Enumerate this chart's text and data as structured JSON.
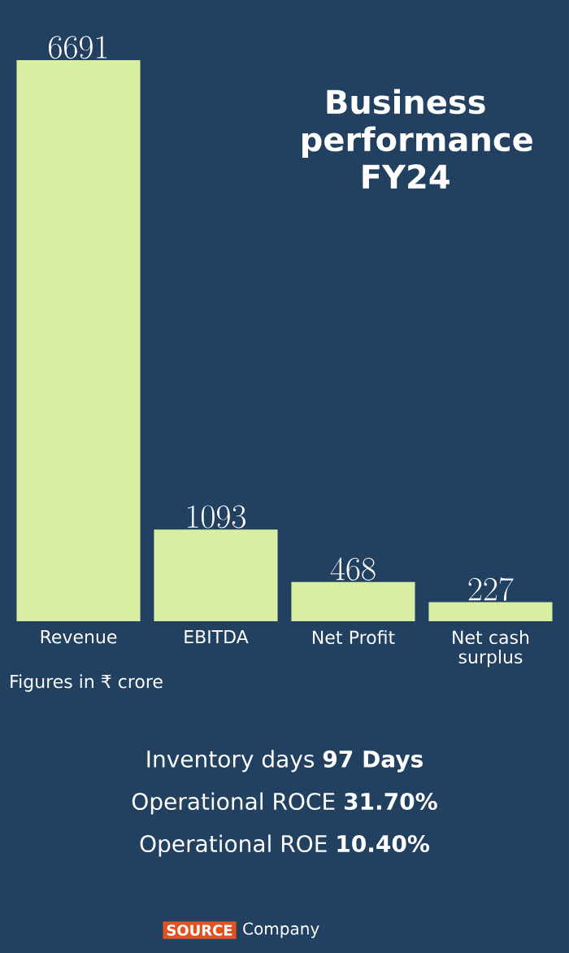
{
  "chart_data": {
    "type": "bar",
    "title": "Business performance FY24",
    "categories": [
      "Revenue",
      "EBITDA",
      "Net Profit",
      "Net cash surplus"
    ],
    "values": [
      6691,
      1093,
      468,
      227
    ],
    "color": "#d8eea0",
    "data_labels": true,
    "annotations": [
      "Figures in ₹ crore",
      "Inventory days **97 Days**",
      "Operational ROCE **31.70%**",
      "Operational ROE **10.40%**",
      "SOURCE",
      "Company"
    ]
  }
}
